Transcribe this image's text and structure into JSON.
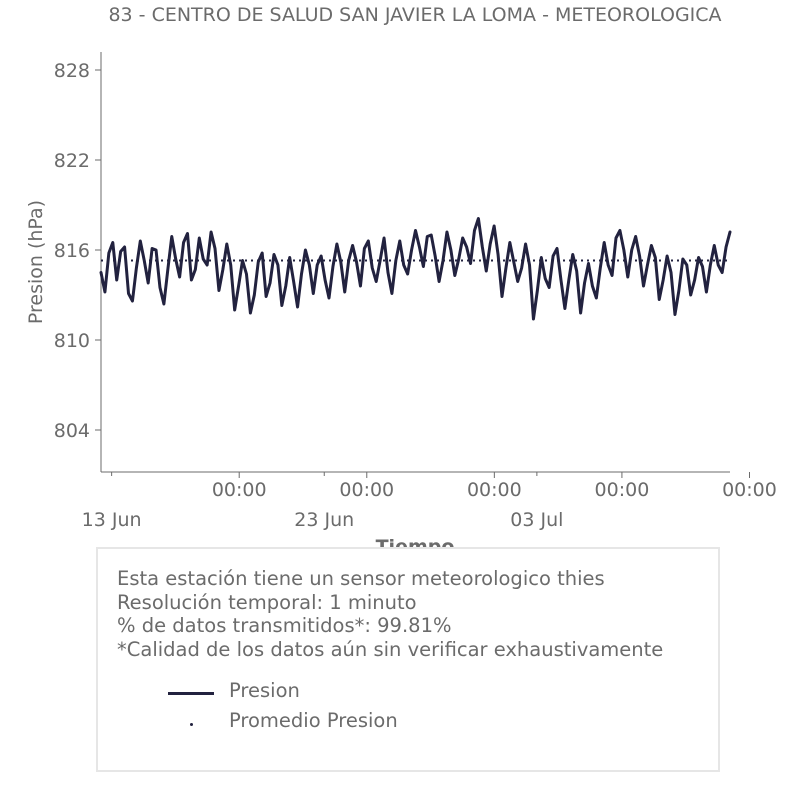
{
  "chart_data": {
    "type": "line",
    "title": "83 - CENTRO DE SALUD SAN JAVIER LA LOMA - METEOROLOGICA",
    "xlabel": "Tiempo",
    "ylabel": "Presion (hPa)",
    "ylim": [
      801.2,
      829.2
    ],
    "yticks": [
      804,
      810,
      816,
      822,
      828
    ],
    "xlim": [
      "2024-06-12T12:00",
      "2024-07-12T02:00"
    ],
    "x_minor_ticks": [
      {
        "x": "2024-06-13T00:00",
        "label": "13 Jun"
      },
      {
        "x": "2024-06-23T00:00",
        "label": "23 Jun"
      },
      {
        "x": "2024-07-03T00:00",
        "label": "03 Jul"
      }
    ],
    "x_major_ticks": [
      {
        "x": "2024-06-19T00:00",
        "label": "00:00"
      },
      {
        "x": "2024-06-25T00:00",
        "label": "00:00"
      },
      {
        "x": "2024-07-01T00:00",
        "label": "00:00"
      },
      {
        "x": "2024-07-07T00:00",
        "label": "00:00"
      },
      {
        "x": "2024-07-13T00:00",
        "label": "00:00"
      }
    ],
    "grid": false,
    "series": [
      {
        "name": "Presion",
        "color": "#22223f",
        "style": "solid",
        "x_start": "2024-06-12T12:00",
        "x_end": "2024-07-12T02:00",
        "values": [
          814.5,
          813.2,
          815.8,
          816.5,
          814.0,
          815.9,
          816.2,
          813.1,
          812.6,
          814.8,
          816.6,
          815.3,
          813.8,
          816.1,
          816.0,
          813.5,
          812.4,
          814.7,
          816.9,
          815.4,
          814.2,
          816.5,
          817.1,
          814.0,
          814.7,
          816.8,
          815.4,
          815.0,
          817.2,
          816.1,
          813.3,
          814.7,
          816.4,
          815.0,
          812.0,
          813.6,
          815.3,
          814.4,
          811.8,
          813.0,
          815.2,
          815.8,
          812.9,
          813.8,
          815.7,
          815.0,
          812.3,
          813.6,
          815.5,
          813.9,
          812.2,
          814.4,
          816.0,
          815.0,
          813.1,
          815.0,
          815.6,
          814.0,
          812.8,
          814.9,
          816.4,
          815.2,
          813.2,
          815.3,
          816.3,
          815.2,
          813.6,
          816.1,
          816.6,
          814.8,
          813.9,
          815.3,
          816.8,
          814.5,
          813.1,
          815.3,
          816.6,
          815.0,
          814.4,
          816.0,
          817.3,
          816.2,
          814.9,
          816.9,
          817.0,
          815.6,
          813.9,
          815.3,
          817.2,
          816.0,
          814.3,
          815.4,
          816.8,
          816.2,
          815.1,
          817.3,
          818.1,
          816.2,
          814.6,
          816.4,
          817.6,
          815.7,
          812.9,
          814.8,
          816.5,
          815.2,
          813.9,
          814.8,
          816.4,
          815.0,
          811.4,
          813.3,
          815.5,
          814.1,
          813.5,
          815.6,
          816.1,
          814.0,
          812.1,
          814.0,
          815.7,
          814.6,
          811.8,
          813.8,
          815.1,
          813.6,
          812.8,
          814.8,
          816.5,
          815.0,
          814.3,
          816.8,
          817.3,
          816.0,
          814.2,
          816.0,
          816.9,
          815.6,
          813.6,
          815.0,
          816.3,
          815.5,
          812.7,
          814.0,
          815.6,
          814.5,
          811.7,
          813.3,
          815.4,
          815.0,
          813.0,
          814.0,
          815.5,
          814.9,
          813.2,
          815.0,
          816.3,
          815.0,
          814.5,
          816.2,
          817.2
        ]
      },
      {
        "name": "Promedio Presion",
        "color": "#22223f",
        "style": "dotted",
        "value": 815.3
      }
    ]
  },
  "info": {
    "line1": "Esta estación tiene un sensor meteorologico thies",
    "line2": "Resolución temporal: 1 minuto",
    "line3": "% de datos transmitidos*: 99.81%",
    "line4": "*Calidad de los datos aún sin verificar exhaustivamente"
  },
  "legend": {
    "presion": "Presion",
    "promedio": "Promedio Presion"
  }
}
